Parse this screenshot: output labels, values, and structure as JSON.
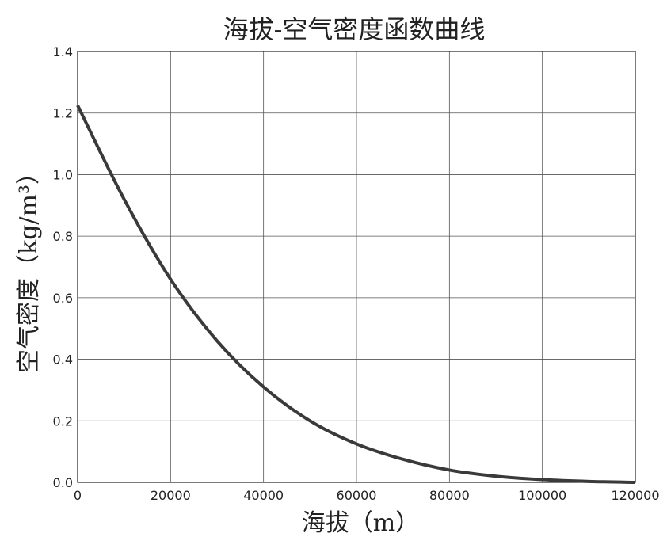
{
  "chart_data": {
    "type": "line",
    "title": "海拔-空气密度函数曲线",
    "xlabel": "海拔（m）",
    "ylabel": "空气密度（kg/m³）",
    "xlim": [
      0,
      120000
    ],
    "ylim": [
      0.0,
      1.4
    ],
    "xticks": [
      0,
      20000,
      40000,
      60000,
      80000,
      100000,
      120000
    ],
    "yticks": [
      0.0,
      0.2,
      0.4,
      0.6,
      0.8,
      1.0,
      1.2,
      1.4
    ],
    "xtick_labels": [
      "0",
      "20000",
      "40000",
      "60000",
      "80000",
      "100000",
      "120000"
    ],
    "ytick_labels": [
      "0.0",
      "0.2",
      "0.4",
      "0.6",
      "0.8",
      "1.0",
      "1.2",
      "1.4"
    ],
    "grid": true,
    "series": [
      {
        "x": [
          0,
          10000,
          20000,
          30000,
          40000,
          50000,
          60000,
          70000,
          80000,
          90000,
          100000,
          110000,
          120000
        ],
        "values": [
          1.225,
          0.92,
          0.66,
          0.46,
          0.31,
          0.2,
          0.125,
          0.075,
          0.04,
          0.02,
          0.009,
          0.003,
          0.0
        ],
        "color": "#3a3a3a"
      }
    ]
  }
}
